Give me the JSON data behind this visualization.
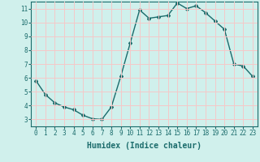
{
  "x": [
    0,
    1,
    2,
    3,
    4,
    5,
    6,
    7,
    8,
    9,
    10,
    11,
    12,
    13,
    14,
    15,
    16,
    17,
    18,
    19,
    20,
    21,
    22,
    23
  ],
  "y": [
    5.8,
    4.8,
    4.2,
    3.9,
    3.7,
    3.3,
    3.05,
    3.0,
    3.9,
    6.1,
    8.5,
    10.9,
    10.3,
    10.4,
    10.5,
    11.4,
    11.0,
    11.2,
    10.7,
    10.1,
    9.5,
    7.0,
    6.85,
    6.1
  ],
  "line_color": "#1a6b6b",
  "bg_color": "#d0f0ec",
  "grid_color": "#f5c8c8",
  "xlabel": "Humidex (Indice chaleur)",
  "ylabel": "",
  "xlim": [
    -0.5,
    23.5
  ],
  "ylim": [
    2.5,
    11.5
  ],
  "yticks": [
    3,
    4,
    5,
    6,
    7,
    8,
    9,
    10,
    11
  ],
  "xticks": [
    0,
    1,
    2,
    3,
    4,
    5,
    6,
    7,
    8,
    9,
    10,
    11,
    12,
    13,
    14,
    15,
    16,
    17,
    18,
    19,
    20,
    21,
    22,
    23
  ],
  "tick_fontsize": 5.5,
  "xlabel_fontsize": 7.0,
  "marker": "D",
  "marker_size": 2.0,
  "line_width": 1.0
}
